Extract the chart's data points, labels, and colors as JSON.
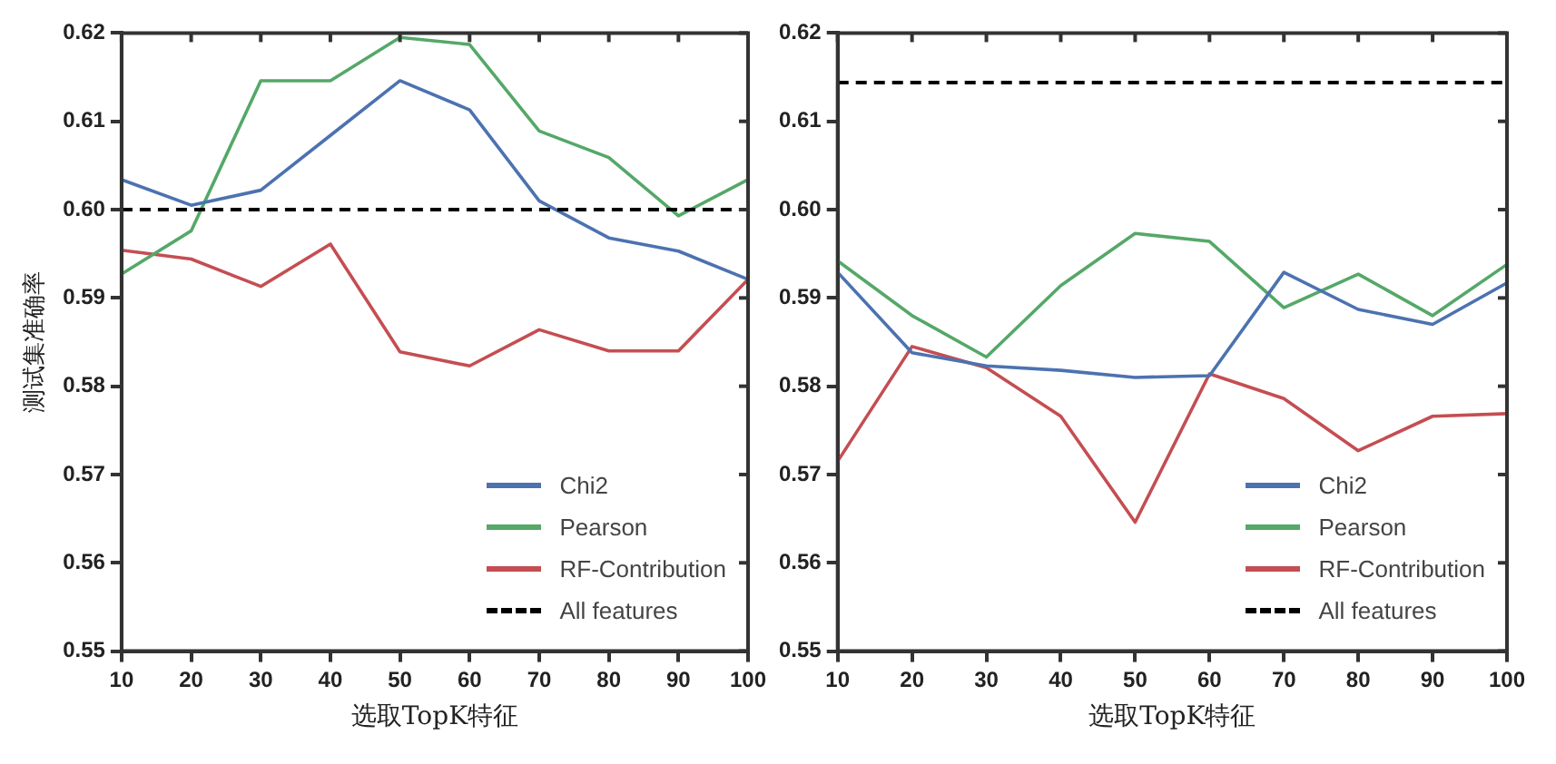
{
  "chart_data": [
    {
      "type": "line",
      "xlabel": "选取TopK特征",
      "ylabel": "测试集准确率",
      "xlim": [
        10,
        100
      ],
      "xticks": [
        10,
        20,
        30,
        40,
        50,
        60,
        70,
        80,
        90,
        100
      ],
      "ylim": [
        0.55,
        0.62
      ],
      "yticks": [
        {
          "value": 0.55,
          "label": "0.55"
        },
        {
          "value": 0.56,
          "label": "0.56"
        },
        {
          "value": 0.57,
          "label": "0.57"
        },
        {
          "value": 0.58,
          "label": "0.58"
        },
        {
          "value": 0.59,
          "label": "0.59"
        },
        {
          "value": 0.6,
          "label": "0.60"
        },
        {
          "value": 0.61,
          "label": "0.61"
        },
        {
          "value": 0.62,
          "label": "0.62"
        }
      ],
      "x": [
        10,
        20,
        30,
        40,
        50,
        60,
        70,
        80,
        90,
        100
      ],
      "series": [
        {
          "name": "Chi2",
          "color": "#4c72b0",
          "values": [
            0.6034,
            0.6005,
            0.6022,
            0.6084,
            0.6146,
            0.6113,
            0.601,
            0.5968,
            0.5953,
            0.5921
          ]
        },
        {
          "name": "Pearson",
          "color": "#55a868",
          "values": [
            0.5927,
            0.5976,
            0.6146,
            0.6146,
            0.6195,
            0.6187,
            0.6089,
            0.6059,
            0.5993,
            0.6034
          ]
        },
        {
          "name": "RF-Contribution",
          "color": "#c44e52",
          "values": [
            0.5954,
            0.5944,
            0.5913,
            0.5961,
            0.5839,
            0.5823,
            0.5864,
            0.584,
            0.584,
            0.5921
          ]
        }
      ],
      "ref_lines": [
        {
          "axis": "y",
          "value": 0.6,
          "label": "All features",
          "color": "#000000",
          "line_style": "dashed"
        }
      ],
      "legend": "bottom right",
      "grid": false,
      "marker": "none"
    },
    {
      "type": "line",
      "xlabel": "选取TopK特征",
      "xlim": [
        10,
        100
      ],
      "xticks": [
        10,
        20,
        30,
        40,
        50,
        60,
        70,
        80,
        90,
        100
      ],
      "ylim": [
        0.55,
        0.62
      ],
      "yticks": [
        {
          "value": 0.55,
          "label": "0.55"
        },
        {
          "value": 0.56,
          "label": "0.56"
        },
        {
          "value": 0.57,
          "label": "0.57"
        },
        {
          "value": 0.58,
          "label": "0.58"
        },
        {
          "value": 0.59,
          "label": "0.59"
        },
        {
          "value": 0.6,
          "label": "0.60"
        },
        {
          "value": 0.61,
          "label": "0.61"
        },
        {
          "value": 0.62,
          "label": "0.62"
        }
      ],
      "x": [
        10,
        20,
        30,
        40,
        50,
        60,
        70,
        80,
        90,
        100
      ],
      "series": [
        {
          "name": "Chi2",
          "color": "#4c72b0",
          "values": [
            0.5929,
            0.5838,
            0.5823,
            0.5818,
            0.581,
            0.5812,
            0.5929,
            0.5887,
            0.587,
            0.5917
          ]
        },
        {
          "name": "Pearson",
          "color": "#55a868",
          "values": [
            0.5942,
            0.588,
            0.5833,
            0.5914,
            0.5973,
            0.5964,
            0.5889,
            0.5927,
            0.588,
            0.5938
          ]
        },
        {
          "name": "RF-Contribution",
          "color": "#c44e52",
          "values": [
            0.5715,
            0.5845,
            0.5821,
            0.5766,
            0.5646,
            0.5814,
            0.5786,
            0.5727,
            0.5766,
            0.5769
          ]
        }
      ],
      "ref_lines": [
        {
          "axis": "y",
          "value": 0.6144,
          "label": "All features",
          "color": "#000000",
          "line_style": "dashed"
        }
      ],
      "legend": "bottom right",
      "grid": false,
      "marker": "none"
    }
  ]
}
